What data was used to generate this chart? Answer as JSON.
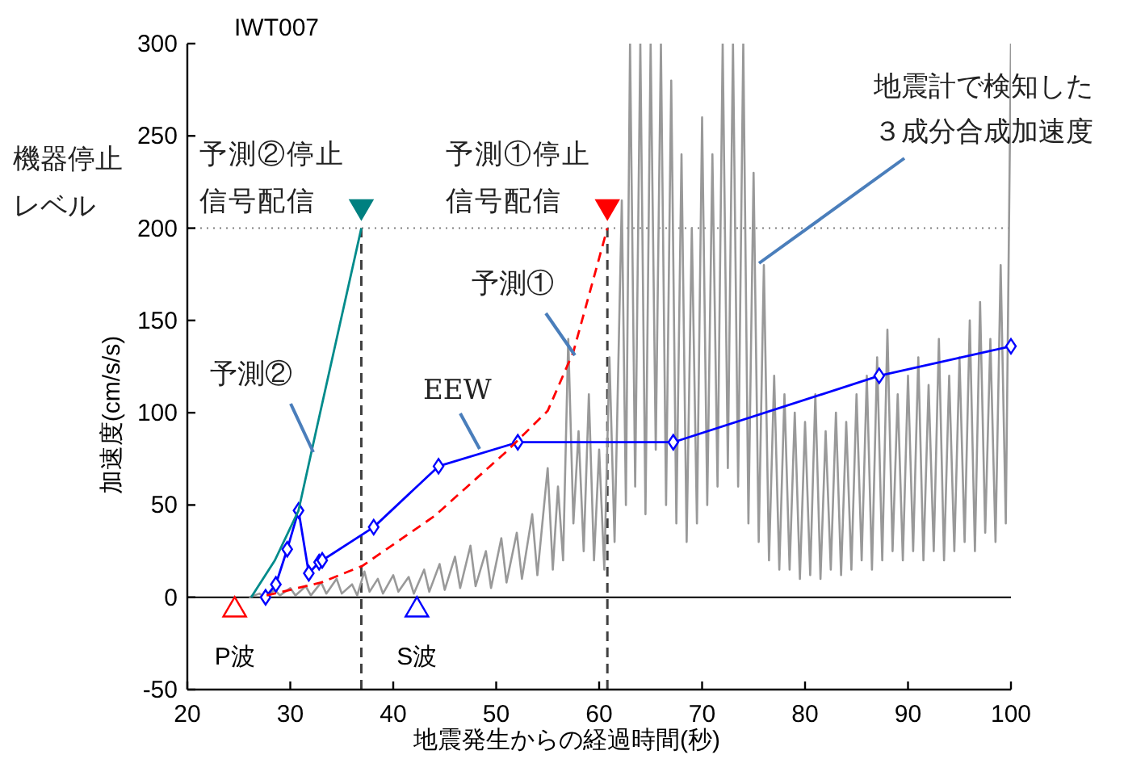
{
  "chart_data": {
    "type": "line",
    "title": "IWT007",
    "xlabel": "地震発生からの経過時間(秒)",
    "ylabel": "加速度(cm/s/s)",
    "xlim": [
      20,
      100
    ],
    "xticks": [
      20,
      30,
      40,
      50,
      60,
      70,
      80,
      90,
      100
    ],
    "ylim": [
      -50,
      300
    ],
    "yticks": [
      -50,
      0,
      50,
      100,
      150,
      200,
      250,
      300
    ],
    "grid": false,
    "legend": false,
    "ref_lines": [
      {
        "axis": "y",
        "value": 200,
        "label": "機器停止レベル",
        "line_style": "dotted",
        "color": "#808080"
      },
      {
        "axis": "y",
        "value": 0,
        "line_style": "solid",
        "color": "#000000"
      },
      {
        "axis": "x",
        "value": 36.9,
        "line_style": "dashed",
        "color": "#404040"
      },
      {
        "axis": "x",
        "value": 60.8,
        "line_style": "dashed",
        "color": "#404040"
      }
    ],
    "series": [
      {
        "name": "地震計で検知した３成分合成加速度",
        "type": "line",
        "color": "#999999",
        "marker": "none",
        "line_style": "solid",
        "x": [
          26,
          27,
          27.5,
          28.5,
          29,
          30,
          30.5,
          31.5,
          32,
          33,
          33.5,
          34.5,
          35,
          36,
          36.5,
          37.2,
          37.7,
          38.5,
          39,
          40,
          40.5,
          41.5,
          42,
          43,
          43.5,
          44.5,
          45,
          46,
          46.5,
          47.5,
          48,
          49,
          49.5,
          50.5,
          51,
          52,
          52.5,
          53.5,
          54,
          55,
          55.5,
          56,
          56.5,
          57,
          57.5,
          58,
          58.5,
          59,
          59.5,
          60,
          60.5,
          61,
          61.5,
          62.2,
          62.6,
          63,
          63.5,
          64,
          64.5,
          65,
          65.5,
          66,
          66.5,
          67,
          67.5,
          68,
          68.5,
          69,
          69.5,
          70,
          70.5,
          71,
          71.5,
          72,
          72.5,
          73,
          73.5,
          74,
          74.5,
          75,
          75.5,
          76,
          76.5,
          77,
          77.5,
          78,
          78.5,
          79,
          79.5,
          80,
          80.5,
          81,
          81.5,
          82,
          82.5,
          83,
          83.5,
          84,
          84.5,
          85,
          85.5,
          86,
          86.5,
          87,
          87.5,
          88,
          88.5,
          89,
          89.5,
          90,
          90.5,
          91,
          91.5,
          92,
          92.5,
          93,
          93.5,
          94,
          94.5,
          95,
          95.5,
          96,
          96.5,
          97,
          97.5,
          98,
          98.5,
          99,
          99.5,
          100
        ],
        "values": [
          0,
          2,
          0,
          4,
          1,
          5,
          1,
          6,
          1,
          8,
          2,
          10,
          2,
          7,
          1,
          14,
          3,
          10,
          2,
          12,
          3,
          11,
          2,
          15,
          3,
          18,
          4,
          22,
          5,
          28,
          6,
          25,
          5,
          32,
          8,
          35,
          10,
          45,
          12,
          70,
          15,
          60,
          20,
          140,
          40,
          90,
          25,
          110,
          20,
          80,
          15,
          130,
          30,
          215,
          50,
          300,
          60,
          300,
          45,
          300,
          80,
          300,
          50,
          280,
          40,
          240,
          30,
          200,
          40,
          260,
          50,
          240,
          60,
          300,
          70,
          300,
          60,
          300,
          40,
          230,
          30,
          180,
          20,
          120,
          15,
          110,
          15,
          100,
          10,
          95,
          12,
          110,
          10,
          90,
          15,
          100,
          12,
          95,
          15,
          110,
          20,
          120,
          15,
          130,
          20,
          145,
          25,
          110,
          20,
          120,
          25,
          130,
          20,
          115,
          25,
          140,
          20,
          120,
          25,
          130,
          30,
          150,
          25,
          160,
          35,
          140,
          30,
          180,
          40,
          300
        ]
      },
      {
        "name": "EEW",
        "type": "line",
        "color": "#0000ff",
        "marker": "diamond",
        "line_style": "solid",
        "x": [
          27.6,
          28.6,
          29.7,
          30.8,
          31.8,
          32.8,
          33.1,
          38.1,
          44.4,
          52.1,
          67.2,
          87.2,
          100
        ],
        "values": [
          0,
          7,
          26,
          47,
          13,
          19,
          20,
          38,
          71,
          84,
          84,
          120,
          136
        ]
      },
      {
        "name": "予測①",
        "type": "line",
        "color": "#ff0000",
        "marker": "none",
        "line_style": "dashed",
        "x": [
          27.7,
          33,
          37,
          44,
          51,
          55,
          57.5,
          60.8
        ],
        "values": [
          1,
          8,
          17,
          44,
          79,
          101,
          133,
          200
        ]
      },
      {
        "name": "予測②",
        "type": "line",
        "color": "#008b8b",
        "marker": "none",
        "line_style": "solid",
        "x": [
          26.2,
          28.5,
          30.8,
          32.5,
          34.5,
          36.9
        ],
        "values": [
          0,
          20,
          47,
          90,
          140,
          200
        ]
      },
      {
        "name": "予測②停止信号配信",
        "type": "scatter",
        "color": "#008080",
        "marker": "triangle",
        "x": [
          36.9
        ],
        "values": [
          210
        ]
      },
      {
        "name": "予測①停止信号配信",
        "type": "scatter",
        "color": "#ff0000",
        "marker": "triangle",
        "x": [
          60.8
        ],
        "values": [
          210
        ]
      },
      {
        "name": "P波",
        "type": "scatter",
        "color": "#ff0000",
        "marker": "triangle",
        "x": [
          24.6
        ],
        "values": [
          -6
        ]
      },
      {
        "name": "S波",
        "type": "scatter",
        "color": "#0000ff",
        "marker": "triangle",
        "x": [
          42.3
        ],
        "values": [
          -6
        ]
      }
    ]
  }
}
